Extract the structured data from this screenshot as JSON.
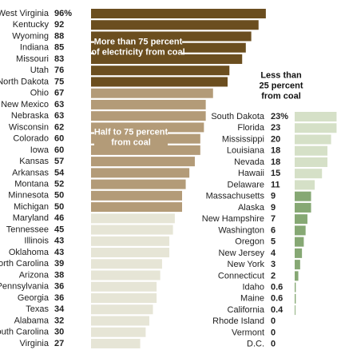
{
  "chart_data": [
    {
      "type": "hbar",
      "categories": [
        "West Virginia",
        "Kentucky",
        "Wyoming",
        "Indiana",
        "Missouri",
        "Utah",
        "North Dakota",
        "Ohio",
        "New Mexico",
        "Nebraska",
        "Wisconsin",
        "Colorado",
        "Iowa",
        "Kansas",
        "Arkansas",
        "Montana",
        "Minnesota",
        "Michigan",
        "Maryland",
        "Tennessee",
        "Illinois",
        "Oklahoma",
        "North Carolina",
        "Arizona",
        "Pennsylvania",
        "Georgia",
        "Texas",
        "Alabama",
        "South Carolina",
        "Virginia"
      ],
      "values": [
        96,
        92,
        88,
        85,
        83,
        76,
        75,
        67,
        63,
        63,
        62,
        60,
        60,
        57,
        54,
        52,
        50,
        50,
        46,
        45,
        43,
        43,
        39,
        38,
        36,
        36,
        34,
        32,
        30,
        27
      ],
      "value_labels": [
        "96%",
        "92",
        "88",
        "85",
        "83",
        "76",
        "75",
        "67",
        "63",
        "63",
        "62",
        "60",
        "60",
        "57",
        "54",
        "52",
        "50",
        "50",
        "46",
        "45",
        "43",
        "43",
        "39",
        "38",
        "36",
        "36",
        "34",
        "32",
        "30",
        "27"
      ],
      "colors": [
        "#6b4e1f",
        "#6b4e1f",
        "#6b4e1f",
        "#6b4e1f",
        "#6b4e1f",
        "#6b4e1f",
        "#6b4e1f",
        "#b39b78",
        "#b39b78",
        "#b39b78",
        "#b39b78",
        "#b39b78",
        "#b39b78",
        "#b39b78",
        "#b39b78",
        "#b39b78",
        "#b39b78",
        "#b39b78",
        "#e6e5d6",
        "#e6e5d6",
        "#e6e5d6",
        "#e6e5d6",
        "#e6e5d6",
        "#e6e5d6",
        "#e6e5d6",
        "#e6e5d6",
        "#e6e5d6",
        "#e6e5d6",
        "#e6e5d6",
        "#e6e5d6"
      ],
      "xlim": [
        0,
        100
      ],
      "annotations": [
        {
          "lines": [
            "More than 75 percent",
            "of electricity from coal"
          ],
          "color": "#6b4e1f"
        },
        {
          "lines": [
            "Half to 75 percent",
            "from coal"
          ],
          "color": "#b39b78"
        }
      ]
    },
    {
      "type": "hbar",
      "categories": [
        "South Dakota",
        "Florida",
        "Mississippi",
        "Louisiana",
        "Nevada",
        "Hawaii",
        "Delaware",
        "Massachusetts",
        "Alaska",
        "New Hampshire",
        "Washington",
        "Oregon",
        "New Jersey",
        "New York",
        "Connecticut",
        "Idaho",
        "Maine",
        "California",
        "Rhode Island",
        "Vermont",
        "D.C."
      ],
      "values": [
        23,
        23,
        20,
        18,
        18,
        15,
        11,
        9,
        9,
        7,
        6,
        5,
        4,
        3,
        2,
        0.6,
        0.6,
        0.4,
        0,
        0,
        0
      ],
      "value_labels": [
        "23%",
        "23",
        "20",
        "18",
        "18",
        "15",
        "11",
        "9",
        "9",
        "7",
        "6",
        "5",
        "4",
        "3",
        "2",
        "0.6",
        "0.6",
        "0.4",
        "0",
        "0",
        "0"
      ],
      "colors": [
        "#d5e0c7",
        "#d5e0c7",
        "#d5e0c7",
        "#d5e0c7",
        "#d5e0c7",
        "#d5e0c7",
        "#d5e0c7",
        "#86a874",
        "#86a874",
        "#86a874",
        "#86a874",
        "#86a874",
        "#86a874",
        "#86a874",
        "#86a874",
        "#86a874",
        "#86a874",
        "#86a874",
        "#86a874",
        "#86a874",
        "#86a874"
      ],
      "xlim": [
        0,
        100
      ],
      "annotations": [
        {
          "lines": [
            "Less than",
            "25 percent",
            "from coal"
          ]
        }
      ]
    }
  ]
}
